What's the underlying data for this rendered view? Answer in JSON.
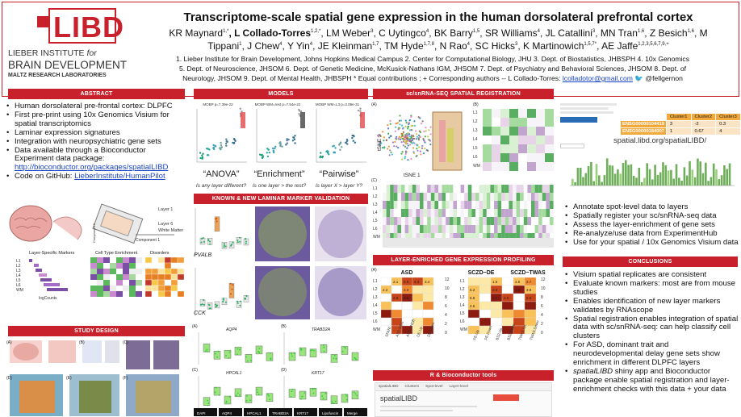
{
  "logo": {
    "mark": "LIBD",
    "line1": "LIEBER INSTITUTE",
    "line1b": "for",
    "line2": "BRAIN DEVELOPMENT",
    "line3": "MALTZ RESEARCH LABORATORIES"
  },
  "header": {
    "title": "Transcriptome-scale spatial gene expression in the human dorsolateral prefrontal cortex",
    "authors_line1": "KR Maynard",
    "authors_line1_sup": "1,*",
    "authors_line1b": ", L Collado-Torres",
    "authors_line1b_sup": "1,2,*",
    "authors_line1c": ", LM Weber",
    "authors_line1c_sup": "3",
    "authors_line1d": ", C Uytingco",
    "authors_line1d_sup": "4",
    "authors_line1e": ", BK Barry",
    "authors_line1e_sup": "1,5",
    "authors_line1f": ", SR Williams",
    "authors_line1f_sup": "4",
    "authors_line1g": ", JL Catallini",
    "authors_line1g_sup": "3",
    "authors_line1h": ", MN Tran",
    "authors_line1h_sup": "1,6",
    "authors_line1i": ", Z Besich",
    "authors_line1i_sup": "1,6",
    "authors_line1j": ", M",
    "authors_line2": "Tippani",
    "authors_line2_sup": "1",
    "authors_line2b": ", J Chew",
    "authors_line2b_sup": "4",
    "authors_line2c": ", Y Yin",
    "authors_line2c_sup": "4",
    "authors_line2d": ", JE Kleinman",
    "authors_line2d_sup": "1,7",
    "authors_line2e": ", TM Hyde",
    "authors_line2e_sup": "1,7,8",
    "authors_line2f": ", N Rao",
    "authors_line2f_sup": "4",
    "authors_line2g": ", SC Hicks",
    "authors_line2g_sup": "3",
    "authors_line2h": ", K Martinowich",
    "authors_line2h_sup": "1,5,7*",
    "authors_line2i": ", AE Jaffe",
    "authors_line2i_sup": "1,2,3,5,6,7,9,+",
    "affil1": "1. Lieber Institute for Brain Development, Johns Hopkins Medical Campus 2. Center for Computational Biology, JHU 3. Dept. of Biostatistics, JHBSPH 4. 10x Genomics",
    "affil2": "5. Dept. of Neuroscience, JHSOM 6. Dept. of Genetic Medicine, McKusick-Nathans IGM, JHSOM 7. Dept. of Psychiatry and Behavioral Sciences, JHSOM 8. Dept. of",
    "affil3": "Neurology, JHSOM 9. Dept. of Mental Health, JHBSPH * Equal contributions ; + Corresponding authors  --  L Collado-Torres: ",
    "affil3_email": "lcolladotor@gmail.com",
    "affil3_handle": "@fellgernon"
  },
  "abstract": {
    "heading": "ABSTRACT",
    "items": [
      "Human dorsolateral pre-frontal cortex: DLPFC",
      "First pre-print using 10x Genomics Visium for spatial transcriptomics",
      "Laminar expression signatures",
      "Integration with neuropsychiatric gene sets",
      "Data available through a Bioconductor Experiment data package:"
    ],
    "link1": "http://bioconductor.org/packages/spatialLIBD",
    "code_prefix": "Code on GitHub: ",
    "link2": "LieberInstitute/HumanPilot"
  },
  "abstract_fig": {
    "layer1": "Layer 1",
    "layer6": "Layer 6",
    "wm": "White Matter",
    "component": "Component 1",
    "component2": "Component 2",
    "markers_title": "Layer-Specific Markers",
    "enrich_title": "Cell Type Enrichment",
    "disorders_title": "Disorders",
    "logcounts": "logCounts",
    "layers": [
      "L1",
      "L2",
      "L3",
      "L4",
      "L5",
      "L6",
      "WM"
    ]
  },
  "study_design": {
    "heading": "STUDY DESIGN",
    "labels": [
      "(A)",
      "(B)",
      "(C)",
      "(D)",
      "(E)",
      "(F)"
    ]
  },
  "models": {
    "heading": "MODELS",
    "plot_titles": [
      "MOBP p=7.39e-22",
      "MOBP WM=rest p=7.54e-22",
      "MOBP WM=L3 p=3.08e-31"
    ],
    "labels": [
      "“ANOVA”",
      "“Enrichment”",
      "“Pairwise”"
    ],
    "questions": [
      "Is any layer different?",
      "Is one layer > the rest?",
      "Is layer X > layer Y?"
    ]
  },
  "validation": {
    "heading": "KNOWN & NEW LAMINAR MARKER VALIDATION",
    "genes": [
      "PVALB",
      "CCK"
    ],
    "panel_labels": [
      "(A)",
      "(B)",
      "(C)",
      "(D)"
    ],
    "small_genes": [
      "AQP4",
      "TRABD2A",
      "HPCAL1",
      "KRT17"
    ],
    "bottom_genes": [
      "DAPI",
      "AQP4",
      "HPCAL1",
      "TRABD2A",
      "KRT17",
      "Lipofuscin",
      "Merge"
    ]
  },
  "registration": {
    "heading": "sc/snRNA-SEQ SPATIAL REGISTRATION",
    "tsne1": "tSNE 1",
    "tsne2": "tSNE 2",
    "label_a": "(A)",
    "label_b": "(B)",
    "label_c": "(C)",
    "layers": [
      "L1",
      "L2",
      "L3",
      "L4",
      "L5",
      "L6",
      "WM"
    ]
  },
  "profiling": {
    "heading": "LAYER-ENRICHED GENE EXPRESSION PROFILING",
    "label": "(A)",
    "asd_title": "ASD",
    "sczd_de_title": "SCZD−DE",
    "sczd_twas_title": "SCZD−TWAS",
    "layers": [
      "L1",
      "L2",
      "L3",
      "L4",
      "L5",
      "L6",
      "WM"
    ],
    "asd_cols": [
      "SFARI",
      "ASD.DEG",
      "ASD.CHD8",
      "DE.Up",
      "DE.Down"
    ],
    "sczd_cols": [
      "PE.Up",
      "PE.Down",
      "BS2.Up",
      "BS2.Down",
      "TWAS.Up",
      "TWAS.Down"
    ],
    "scale_ticks": [
      "12",
      "10",
      "8",
      "6",
      "4",
      "2",
      "0"
    ],
    "asd_cells": [
      "2.1",
      "2.9",
      "4.3",
      "3.4",
      "2.2",
      "2.3",
      "2.8",
      "2.5"
    ],
    "sczd_cells": [
      "1.5",
      "2.6",
      "2.7",
      "5.2",
      "2.3",
      "1.6",
      "3.8",
      "5.8",
      "2.1",
      "2.0",
      "2.8",
      "2.6"
    ]
  },
  "r_tools": {
    "heading": "R & Bioconductor tools",
    "pkg": "spatialLIBD",
    "tabs": [
      "spatialLIBD",
      "Clusters",
      "Spot-level",
      "Layer-level"
    ]
  },
  "right_top": {
    "table_headers": [
      "Cluster1",
      "Cluster2",
      "Cluster3"
    ],
    "table_rows": [
      {
        "id": "ENSG00000104419",
        "c1": "3",
        "c2": "-2",
        "c3": "0.3"
      },
      {
        "id": "ENSG00000184007",
        "c1": "1",
        "c2": "0.67",
        "c3": "4"
      }
    ],
    "url": "spatial.libd.org/spatialLIBD/",
    "items": [
      "Annotate spot-level data to layers",
      "Spatially register your sc/snRNA-seq data",
      "Assess the layer-enrichment of gene sets",
      "Re-analyze/use data from ExperimentHub",
      "Use for your spatial / 10x Genomics Visium data"
    ]
  },
  "conclusions": {
    "heading": "CONCLUSIONS",
    "items": [
      "Visium spatial replicates are consistent",
      "Evaluate known markers: most are from mouse studies",
      "Enables identification of new layer markers validates by RNAscope",
      "Spatial registration enables integration of spatial data with sc/snRNA-seq: can help classify cell clusters",
      "For ASD, dominant trait and neurodevelopmental delay gene sets show enrichment in different DLPFC layers"
    ],
    "last_italic": "spatialLIBD",
    "last_rest": " shiny app and Bioconductor package enable spatial registration and layer-enrichment checks with this data + your data"
  },
  "colors": {
    "brand_red": "#c9212b",
    "link_blue": "#1a44c8",
    "orange_table": "#f2a93b"
  }
}
